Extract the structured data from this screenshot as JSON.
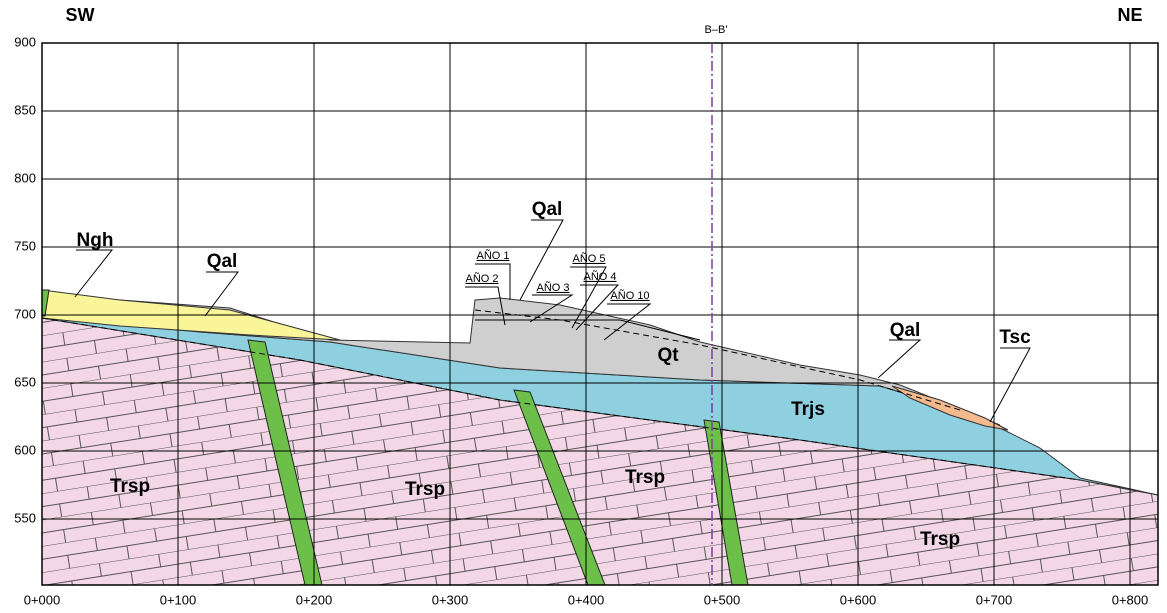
{
  "header": {
    "left": "SW",
    "right": "NE",
    "section": "B–B'"
  },
  "axis": {
    "y_ticks": [
      900,
      850,
      800,
      750,
      700,
      650,
      600,
      550
    ],
    "x_ticks": [
      "0+000",
      "0+100",
      "0+200",
      "0+300",
      "0+400",
      "0+500",
      "0+600",
      "0+700",
      "0+800"
    ]
  },
  "units": [
    "Ngh",
    "Qal",
    "Qal",
    "Qal",
    "Tsc",
    "Qt",
    "Trjs",
    "Trsp",
    "Trsp",
    "Trsp",
    "Trsp"
  ],
  "years": [
    "AÑO 1",
    "AÑO 2",
    "AÑO 3",
    "AÑO 5",
    "AÑO 4",
    "AÑO 10"
  ]
}
